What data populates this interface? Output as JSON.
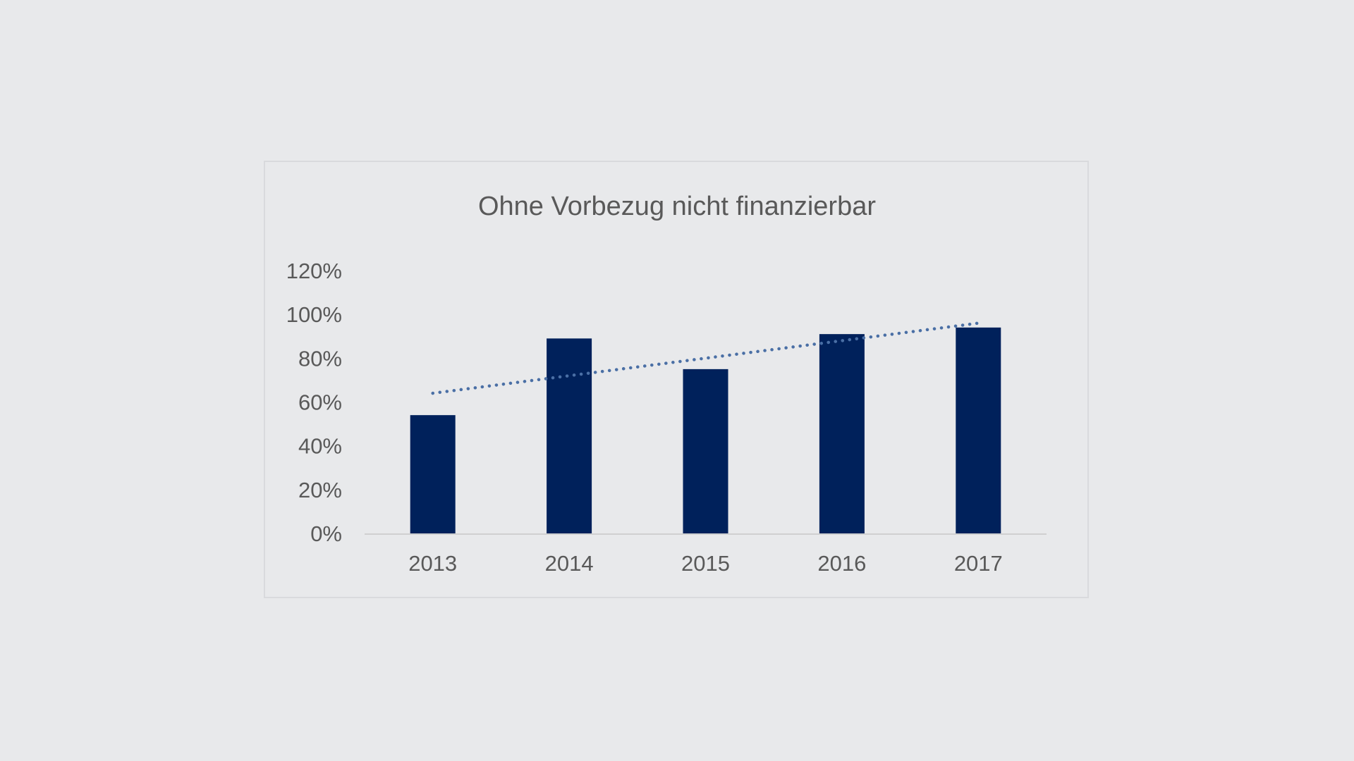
{
  "chart_data": {
    "type": "bar",
    "title": "Ohne Vorbezug nicht finanzierbar",
    "categories": [
      "2013",
      "2014",
      "2015",
      "2016",
      "2017"
    ],
    "series": [
      {
        "values": [
          54,
          89,
          75,
          91,
          94
        ],
        "color": "#00215b"
      }
    ],
    "trendline": {
      "type": "linear",
      "style": "dotted",
      "color": "#4a6fa5",
      "start": 64,
      "end": 96
    },
    "ylim": [
      0,
      120
    ],
    "yticks": [
      "0%",
      "20%",
      "40%",
      "60%",
      "80%",
      "100%",
      "120%"
    ],
    "ytick_values": [
      0,
      20,
      40,
      60,
      80,
      100,
      120
    ],
    "grid": false,
    "legend": "none",
    "xlabel": "",
    "ylabel": ""
  }
}
